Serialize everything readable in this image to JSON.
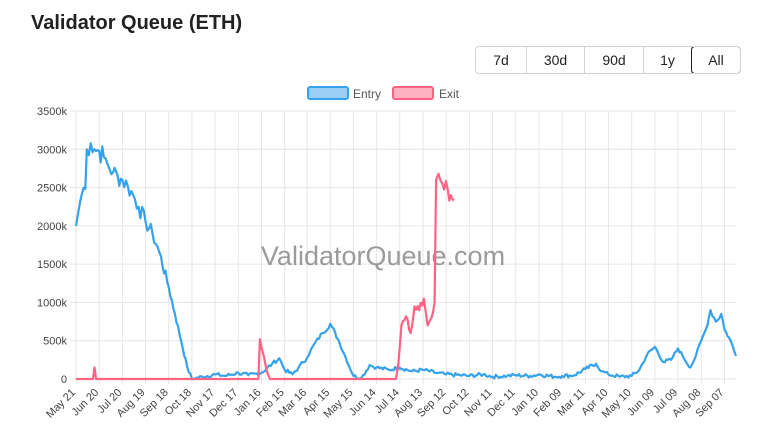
{
  "header": {
    "title": "Validator Queue (ETH)"
  },
  "range_buttons": [
    {
      "label": "7d",
      "active": false
    },
    {
      "label": "30d",
      "active": false
    },
    {
      "label": "90d",
      "active": false
    },
    {
      "label": "1y",
      "active": false
    },
    {
      "label": "All",
      "active": true
    }
  ],
  "watermark": "ValidatorQueue.com",
  "colors": {
    "entry": "#36a2eb",
    "exit": "#ff6384",
    "grid": "#e6e6e6"
  },
  "chart_data": {
    "type": "line",
    "title": "",
    "xlabel": "",
    "ylabel": "",
    "ylim": [
      0,
      3500000
    ],
    "y_ticks": [
      "0",
      "500k",
      "1000k",
      "1500k",
      "2000k",
      "2500k",
      "3000k",
      "3500k"
    ],
    "x_ticks": [
      "May 21",
      "Jun 20",
      "Jul 20",
      "Aug 19",
      "Sep 18",
      "Oct 18",
      "Nov 17",
      "Dec 17",
      "Jan 16",
      "Feb 15",
      "Mar 16",
      "Apr 15",
      "May 15",
      "Jun 14",
      "Jul 14",
      "Aug 13",
      "Sep 12",
      "Oct 12",
      "Nov 11",
      "Dec 11",
      "Jan 10",
      "Feb 09",
      "Mar 11",
      "Apr 10",
      "May 10",
      "Jun 09",
      "Jul 09",
      "Aug 08",
      "Sep 07"
    ],
    "grid": true,
    "legend": "top-center",
    "x_range": [
      "May 21",
      "Sep 22"
    ],
    "series": [
      {
        "name": "Entry",
        "color": "#36a2eb",
        "points": [
          [
            "May 21",
            2000000
          ],
          [
            "May 26",
            2300000
          ],
          [
            "May 31",
            2500000
          ],
          [
            "Jun 02",
            2480000
          ],
          [
            "Jun 04",
            3000000
          ],
          [
            "Jun 09",
            3080000
          ],
          [
            "Jun 14",
            3000000
          ],
          [
            "Jun 20",
            2980000
          ],
          [
            "Jun 26",
            2900000
          ],
          [
            "Jul 01",
            2800000
          ],
          [
            "Jul 08",
            2700000
          ],
          [
            "Jul 14",
            2650000
          ],
          [
            "Jul 20",
            2600000
          ],
          [
            "Jul 27",
            2520000
          ],
          [
            "Aug 03",
            2400000
          ],
          [
            "Aug 10",
            2250000
          ],
          [
            "Aug 19",
            2050000
          ],
          [
            "Aug 28",
            1900000
          ],
          [
            "Sep 06",
            1650000
          ],
          [
            "Sep 18",
            1200000
          ],
          [
            "Sep 26",
            850000
          ],
          [
            "Oct 04",
            500000
          ],
          [
            "Oct 12",
            150000
          ],
          [
            "Oct 18",
            0
          ],
          [
            "Nov 01",
            30000
          ],
          [
            "Nov 17",
            60000
          ],
          [
            "Nov 30",
            40000
          ],
          [
            "Dec 17",
            80000
          ],
          [
            "Dec 30",
            50000
          ],
          [
            "Jan 16",
            80000
          ],
          [
            "Jan 30",
            200000
          ],
          [
            "Feb 08",
            270000
          ],
          [
            "Feb 15",
            120000
          ],
          [
            "Feb 25",
            60000
          ],
          [
            "Mar 05",
            150000
          ],
          [
            "Mar 16",
            280000
          ],
          [
            "Mar 25",
            450000
          ],
          [
            "Apr 05",
            600000
          ],
          [
            "Apr 15",
            720000
          ],
          [
            "Apr 25",
            520000
          ],
          [
            "May 05",
            280000
          ],
          [
            "May 15",
            40000
          ],
          [
            "May 25",
            10000
          ],
          [
            "Jun 05",
            180000
          ],
          [
            "Jun 14",
            150000
          ],
          [
            "Jun 30",
            120000
          ],
          [
            "Jul 14",
            150000
          ],
          [
            "Jul 30",
            100000
          ],
          [
            "Aug 13",
            120000
          ],
          [
            "Aug 30",
            80000
          ],
          [
            "Sep 12",
            60000
          ],
          [
            "Sep 30",
            50000
          ],
          [
            "Oct 12",
            40000
          ],
          [
            "Oct 30",
            60000
          ],
          [
            "Nov 11",
            30000
          ],
          [
            "Nov 30",
            40000
          ],
          [
            "Dec 11",
            50000
          ],
          [
            "Dec 30",
            40000
          ],
          [
            "Jan 10",
            60000
          ],
          [
            "Jan 30",
            30000
          ],
          [
            "Feb 09",
            40000
          ],
          [
            "Feb 25",
            50000
          ],
          [
            "Mar 11",
            130000
          ],
          [
            "Mar 25",
            200000
          ],
          [
            "Apr 01",
            100000
          ],
          [
            "Apr 10",
            60000
          ],
          [
            "Apr 25",
            30000
          ],
          [
            "May 10",
            40000
          ],
          [
            "May 20",
            120000
          ],
          [
            "May 30",
            320000
          ],
          [
            "Jun 09",
            420000
          ],
          [
            "Jun 20",
            220000
          ],
          [
            "Jun 30",
            250000
          ],
          [
            "Jul 09",
            400000
          ],
          [
            "Jul 15",
            300000
          ],
          [
            "Jul 25",
            150000
          ],
          [
            "Aug 01",
            300000
          ],
          [
            "Aug 08",
            500000
          ],
          [
            "Aug 14",
            650000
          ],
          [
            "Aug 20",
            900000
          ],
          [
            "Aug 27",
            750000
          ],
          [
            "Sep 03",
            850000
          ],
          [
            "Sep 07",
            650000
          ],
          [
            "Sep 15",
            500000
          ],
          [
            "Sep 22",
            300000
          ]
        ]
      },
      {
        "name": "Exit",
        "color": "#ff6384",
        "points": [
          [
            "May 21",
            0
          ],
          [
            "Jun 12",
            0
          ],
          [
            "Jun 14",
            150000
          ],
          [
            "Jun 16",
            0
          ],
          [
            "Dec 17",
            0
          ],
          [
            "Jan 12",
            0
          ],
          [
            "Jan 14",
            520000
          ],
          [
            "Jan 19",
            300000
          ],
          [
            "Jan 23",
            100000
          ],
          [
            "Jan 27",
            0
          ],
          [
            "Jun 09",
            0
          ],
          [
            "Jul 09",
            0
          ],
          [
            "Jul 12",
            200000
          ],
          [
            "Jul 16",
            700000
          ],
          [
            "Jul 22",
            820000
          ],
          [
            "Jul 28",
            600000
          ],
          [
            "Aug 02",
            950000
          ],
          [
            "Aug 08",
            900000
          ],
          [
            "Aug 14",
            1050000
          ],
          [
            "Aug 19",
            700000
          ],
          [
            "Aug 24",
            800000
          ],
          [
            "Aug 28",
            1000000
          ],
          [
            "Aug 30",
            2600000
          ],
          [
            "Sep 02",
            2680000
          ],
          [
            "Sep 07",
            2550000
          ],
          [
            "Sep 14",
            2480000
          ],
          [
            "Sep 22",
            2330000
          ]
        ]
      }
    ]
  }
}
